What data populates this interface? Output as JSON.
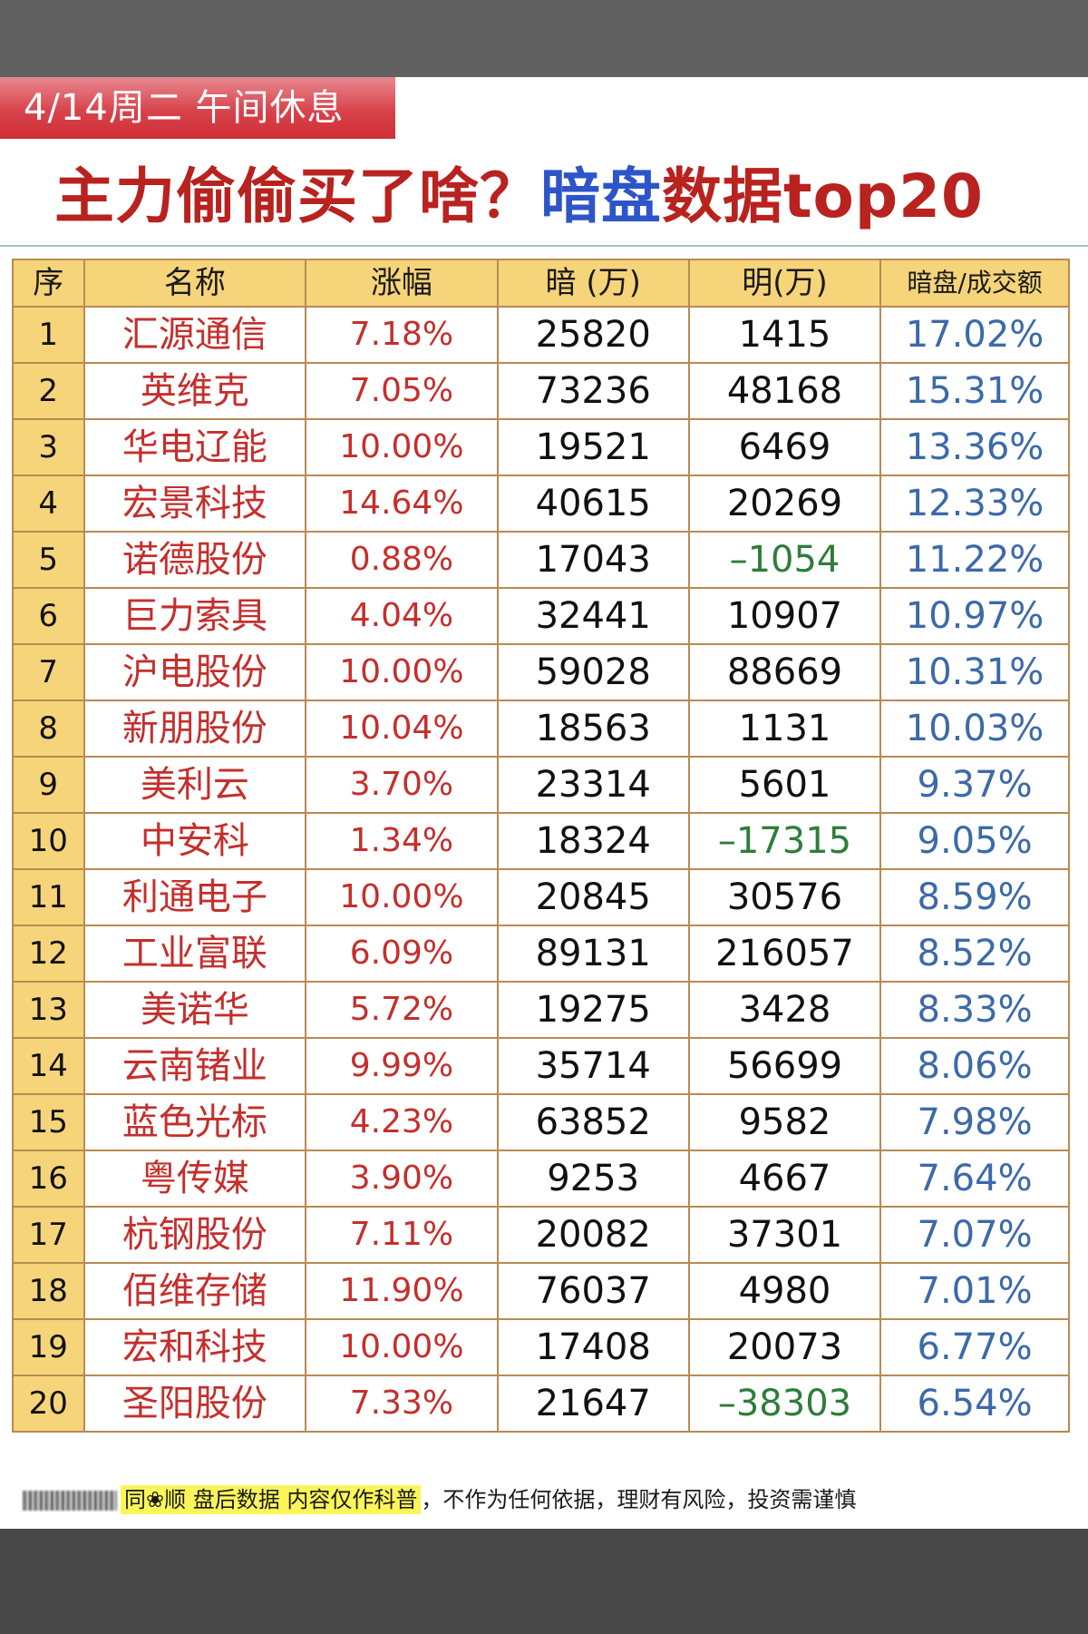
{
  "header": {
    "badge": "4/14周二  午间休息",
    "headline_part1": "主力偷偷买了啥？",
    "headline_part2": "暗盘",
    "headline_part3": "数据top20"
  },
  "table": {
    "columns": [
      "序",
      "名称",
      "涨幅",
      "暗 (万)",
      "明(万)",
      "暗盘/成交额"
    ],
    "rows": [
      {
        "idx": "1",
        "name": "汇源通信",
        "chg": "7.18%",
        "dark": "25820",
        "lit": "1415",
        "ratio": "17.02%"
      },
      {
        "idx": "2",
        "name": "英维克",
        "chg": "7.05%",
        "dark": "73236",
        "lit": "48168",
        "ratio": "15.31%"
      },
      {
        "idx": "3",
        "name": "华电辽能",
        "chg": "10.00%",
        "dark": "19521",
        "lit": "6469",
        "ratio": "13.36%"
      },
      {
        "idx": "4",
        "name": "宏景科技",
        "chg": "14.64%",
        "dark": "40615",
        "lit": "20269",
        "ratio": "12.33%"
      },
      {
        "idx": "5",
        "name": "诺德股份",
        "chg": "0.88%",
        "dark": "17043",
        "lit": "-1054",
        "ratio": "11.22%"
      },
      {
        "idx": "6",
        "name": "巨力索具",
        "chg": "4.04%",
        "dark": "32441",
        "lit": "10907",
        "ratio": "10.97%"
      },
      {
        "idx": "7",
        "name": "沪电股份",
        "chg": "10.00%",
        "dark": "59028",
        "lit": "88669",
        "ratio": "10.31%"
      },
      {
        "idx": "8",
        "name": "新朋股份",
        "chg": "10.04%",
        "dark": "18563",
        "lit": "1131",
        "ratio": "10.03%"
      },
      {
        "idx": "9",
        "name": "美利云",
        "chg": "3.70%",
        "dark": "23314",
        "lit": "5601",
        "ratio": "9.37%"
      },
      {
        "idx": "10",
        "name": "中安科",
        "chg": "1.34%",
        "dark": "18324",
        "lit": "-17315",
        "ratio": "9.05%"
      },
      {
        "idx": "11",
        "name": "利通电子",
        "chg": "10.00%",
        "dark": "20845",
        "lit": "30576",
        "ratio": "8.59%"
      },
      {
        "idx": "12",
        "name": "工业富联",
        "chg": "6.09%",
        "dark": "89131",
        "lit": "216057",
        "ratio": "8.52%"
      },
      {
        "idx": "13",
        "name": "美诺华",
        "chg": "5.72%",
        "dark": "19275",
        "lit": "3428",
        "ratio": "8.33%"
      },
      {
        "idx": "14",
        "name": "云南锗业",
        "chg": "9.99%",
        "dark": "35714",
        "lit": "56699",
        "ratio": "8.06%"
      },
      {
        "idx": "15",
        "name": "蓝色光标",
        "chg": "4.23%",
        "dark": "63852",
        "lit": "9582",
        "ratio": "7.98%"
      },
      {
        "idx": "16",
        "name": "粤传媒",
        "chg": "3.90%",
        "dark": "9253",
        "lit": "4667",
        "ratio": "7.64%"
      },
      {
        "idx": "17",
        "name": "杭钢股份",
        "chg": "7.11%",
        "dark": "20082",
        "lit": "37301",
        "ratio": "7.07%"
      },
      {
        "idx": "18",
        "name": "佰维存储",
        "chg": "11.90%",
        "dark": "76037",
        "lit": "4980",
        "ratio": "7.01%"
      },
      {
        "idx": "19",
        "name": "宏和科技",
        "chg": "10.00%",
        "dark": "17408",
        "lit": "20073",
        "ratio": "6.77%"
      },
      {
        "idx": "20",
        "name": "圣阳股份",
        "chg": "7.33%",
        "dark": "21647",
        "lit": "-38303",
        "ratio": "6.54%"
      }
    ]
  },
  "footer": {
    "source_highlight": "同❀顺  盘后数据  内容仅作科普",
    "disclaimer": "，不作为任何依据，理财有风险，投资需谨慎"
  },
  "colors": {
    "title_red": "#b8221f",
    "title_blue": "#2d55c9",
    "header_bg": "#f6d47a",
    "border": "#b98a52",
    "name_red": "#c42f2c",
    "negative_green": "#2e7d3a",
    "ratio_blue": "#3c6aa8",
    "highlight_yellow": "#fbf55a"
  }
}
